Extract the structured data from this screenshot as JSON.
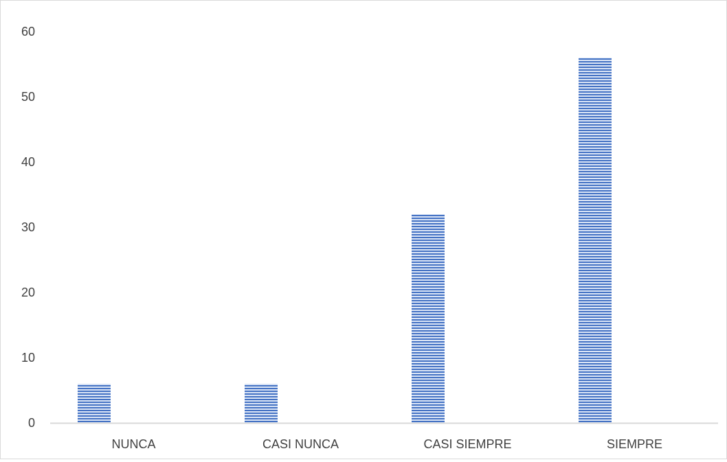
{
  "chart_data": {
    "type": "bar",
    "categories": [
      "NUNCA",
      "CASI NUNCA",
      "CASI SIEMPRE",
      "SIEMPRE"
    ],
    "values": [
      6,
      6,
      32,
      56
    ],
    "title": "",
    "xlabel": "",
    "ylabel": "",
    "ylim": [
      0,
      60
    ],
    "yticks": [
      0,
      10,
      20,
      30,
      40,
      50,
      60
    ],
    "grid": false,
    "legend": "none",
    "colors": {
      "bar": "#4472c4",
      "bar_light": "#dbe5f6",
      "axis": "#d9d9d9",
      "text": "#404040"
    }
  }
}
